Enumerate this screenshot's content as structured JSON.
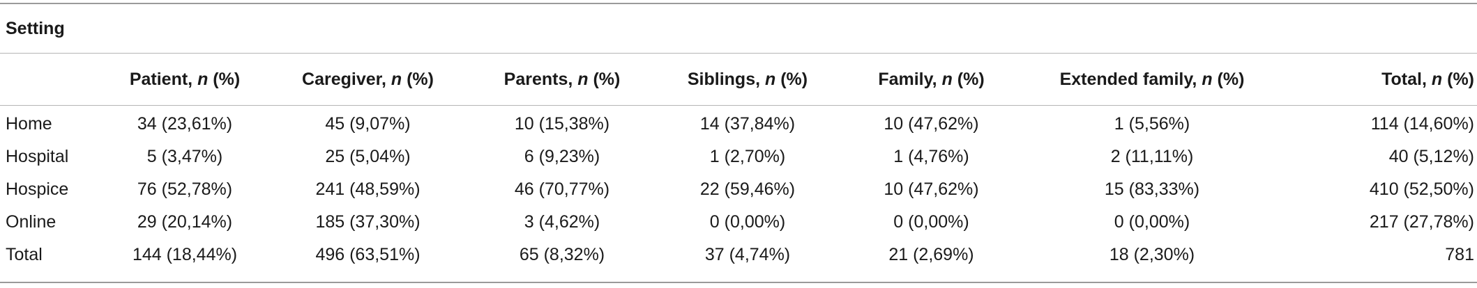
{
  "table": {
    "setting_title": "Setting",
    "columns": [
      {
        "label": "Patient, ",
        "italic": "n",
        "suffix": " (%)"
      },
      {
        "label": "Caregiver, ",
        "italic": "n",
        "suffix": " (%)"
      },
      {
        "label": "Parents, ",
        "italic": "n",
        "suffix": " (%)"
      },
      {
        "label": "Siblings, ",
        "italic": "n",
        "suffix": " (%)"
      },
      {
        "label": "Family, ",
        "italic": "n",
        "suffix": " (%)"
      },
      {
        "label": "Extended family, ",
        "italic": "n",
        "suffix": " (%)"
      },
      {
        "label": "Total, ",
        "italic": "n",
        "suffix": " (%)"
      }
    ],
    "rows": [
      {
        "label": "Home",
        "cells": [
          "34 (23,61%)",
          "45 (9,07%)",
          "10 (15,38%)",
          "14 (37,84%)",
          "10 (47,62%)",
          "1 (5,56%)",
          "114 (14,60%)"
        ]
      },
      {
        "label": "Hospital",
        "cells": [
          "5 (3,47%)",
          "25 (5,04%)",
          "6 (9,23%)",
          "1 (2,70%)",
          "1 (4,76%)",
          "2 (11,11%)",
          "40 (5,12%)"
        ]
      },
      {
        "label": "Hospice",
        "cells": [
          "76 (52,78%)",
          "241 (48,59%)",
          "46 (70,77%)",
          "22 (59,46%)",
          "10 (47,62%)",
          "15 (83,33%)",
          "410 (52,50%)"
        ]
      },
      {
        "label": "Online",
        "cells": [
          "29 (20,14%)",
          "185 (37,30%)",
          "3 (4,62%)",
          "0 (0,00%)",
          "0 (0,00%)",
          "0 (0,00%)",
          "217 (27,78%)"
        ]
      },
      {
        "label": "Total",
        "cells": [
          "144 (18,44%)",
          "496 (63,51%)",
          "65 (8,32%)",
          "37 (4,74%)",
          "21 (2,69%)",
          "18 (2,30%)",
          "781"
        ]
      }
    ]
  }
}
